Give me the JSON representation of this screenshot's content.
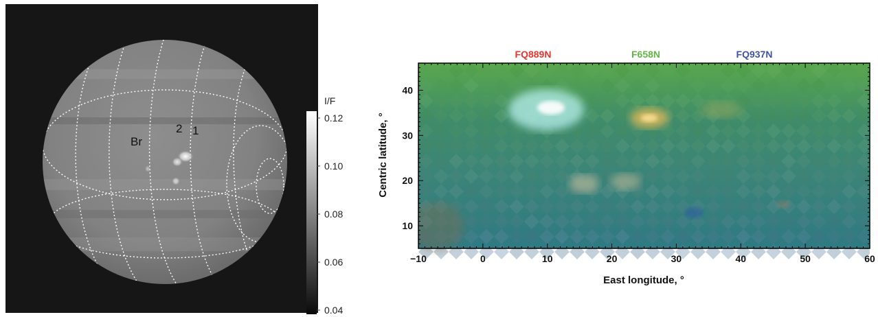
{
  "left_image": {
    "feature_labels": [
      "Br",
      "2",
      "1"
    ]
  },
  "colorbar": {
    "label": "I/F",
    "ticks": [
      "0.12",
      "0.10",
      "0.08",
      "0.06",
      "0.04"
    ]
  },
  "map": {
    "filters": [
      {
        "label": "FQ889N",
        "color": "#e8342b"
      },
      {
        "label": "F658N",
        "color": "#62b446"
      },
      {
        "label": "FQ937N",
        "color": "#3d52a6"
      }
    ],
    "xlabel": "East longitude, °",
    "ylabel": "Centric latitude, °",
    "xticks": [
      "−10",
      "0",
      "10",
      "20",
      "30",
      "40",
      "50",
      "60"
    ],
    "yticks": [
      "40",
      "30",
      "20",
      "10"
    ],
    "xlim": [
      -10,
      60
    ],
    "ylim": [
      5,
      46
    ]
  }
}
